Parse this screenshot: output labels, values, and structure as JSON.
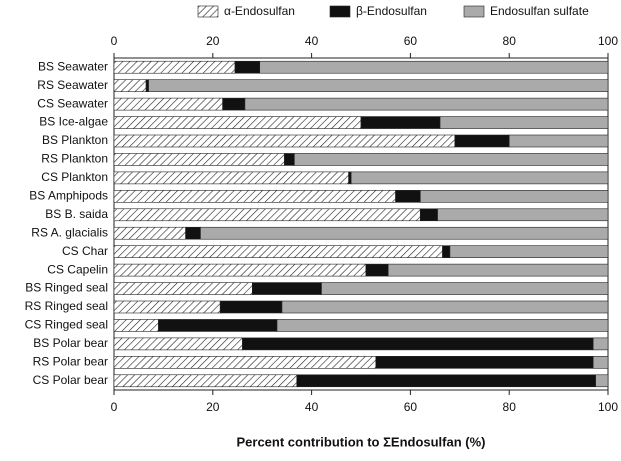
{
  "chart_data": {
    "type": "stacked-bar-horizontal",
    "xlabel": "Percent contribution to ΣEndosulfan (%)",
    "categories": [
      "BS Seawater",
      "RS Seawater",
      "CS Seawater",
      "BS Ice-algae",
      "BS Plankton",
      "RS Plankton",
      "CS Plankton",
      "BS Amphipods",
      "BS B. saida",
      "RS A. glacialis",
      "CS Char",
      "CS Capelin",
      "BS Ringed seal",
      "RS Ringed seal",
      "CS Ringed seal",
      "BS Polar bear",
      "RS Polar bear",
      "CS Polar bear"
    ],
    "series": [
      {
        "name": "α-Endosulfan",
        "color": "#ffffff",
        "hatch": true,
        "values": [
          24.5,
          6.5,
          22,
          50,
          69,
          34.5,
          47.5,
          57,
          62,
          14.5,
          66.5,
          51,
          28,
          21.5,
          9,
          26,
          53,
          37
        ]
      },
      {
        "name": "β-Endosulfan",
        "color": "#111111",
        "values": [
          5,
          0.5,
          4.5,
          16,
          11,
          2,
          0.5,
          5,
          3.5,
          3,
          1.5,
          4.5,
          14,
          12.5,
          24,
          71,
          44,
          60.5
        ]
      },
      {
        "name": "Endosulfan sulfate",
        "color": "#aaaaaa",
        "values": [
          70.5,
          93,
          73.5,
          34,
          20,
          63.5,
          52,
          38,
          34.5,
          82.5,
          32,
          44.5,
          58,
          66,
          67,
          3,
          3,
          2.5
        ]
      }
    ],
    "xlim": [
      0,
      100
    ],
    "xticks": [
      0,
      20,
      40,
      60,
      80,
      100
    ]
  }
}
